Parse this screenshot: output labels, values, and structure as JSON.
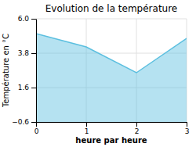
{
  "chart_data": {
    "type": "area",
    "title": "Evolution de la température",
    "x_label": "heure par heure",
    "y_label": "Température en °C",
    "x": [
      0,
      1,
      2,
      3
    ],
    "values": [
      5.05,
      4.2,
      2.55,
      4.75
    ],
    "color": "#5bbfdf",
    "xlim": [
      0,
      3
    ],
    "ylim": [
      -0.6,
      6.0
    ],
    "xticks": [
      0,
      1,
      2,
      3
    ],
    "yticks": [
      {
        "value": -0.6,
        "label": "−0.6"
      },
      1.6,
      3.8,
      {
        "value": 6.0,
        "label": "6.0"
      }
    ],
    "grid": true
  }
}
